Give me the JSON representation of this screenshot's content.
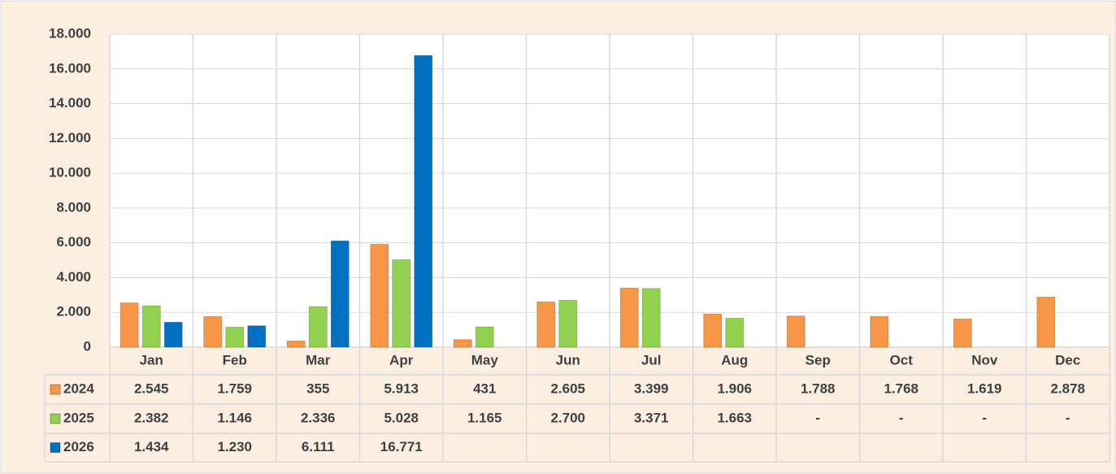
{
  "chart_data": {
    "type": "bar",
    "categories": [
      "Jan",
      "Feb",
      "Mar",
      "Apr",
      "May",
      "Jun",
      "Jul",
      "Aug",
      "Sep",
      "Oct",
      "Nov",
      "Dec"
    ],
    "series": [
      {
        "name": "2024",
        "color": "#f79646",
        "values": [
          2545,
          1759,
          355,
          5913,
          431,
          2605,
          3399,
          1906,
          1788,
          1768,
          1619,
          2878
        ],
        "value_labels": [
          "2.545",
          "1.759",
          "355",
          "5.913",
          "431",
          "2.605",
          "3.399",
          "1.906",
          "1.788",
          "1.768",
          "1.619",
          "2.878"
        ]
      },
      {
        "name": "2025",
        "color": "#92d050",
        "values": [
          2382,
          1146,
          2336,
          5028,
          1165,
          2700,
          3371,
          1663,
          null,
          null,
          null,
          null
        ],
        "value_labels": [
          "2.382",
          "1.146",
          "2.336",
          "5.028",
          "1.165",
          "2.700",
          "3.371",
          "1.663",
          "-",
          "-",
          "-",
          "-"
        ]
      },
      {
        "name": "2026",
        "color": "#0070c0",
        "values": [
          1434,
          1230,
          6111,
          16771,
          null,
          null,
          null,
          null,
          null,
          null,
          null,
          null
        ],
        "value_labels": [
          "1.434",
          "1.230",
          "6.111",
          "16.771",
          null,
          null,
          null,
          null,
          null,
          null,
          null,
          null
        ]
      }
    ],
    "ylim": [
      0,
      18000
    ],
    "yticks": [
      0,
      {
        "value": 2000,
        "label": "2.000"
      },
      {
        "value": 4000,
        "label": "4.000"
      },
      {
        "value": 6000,
        "label": "6.000"
      },
      {
        "value": 8000,
        "label": "8.000"
      },
      {
        "value": 10000,
        "label": "10.000"
      },
      {
        "value": 12000,
        "label": "12.000"
      },
      {
        "value": 14000,
        "label": "14.000"
      },
      {
        "value": 16000,
        "label": "16.000"
      },
      {
        "value": 18000,
        "label": "18.000"
      }
    ],
    "grid": true
  }
}
